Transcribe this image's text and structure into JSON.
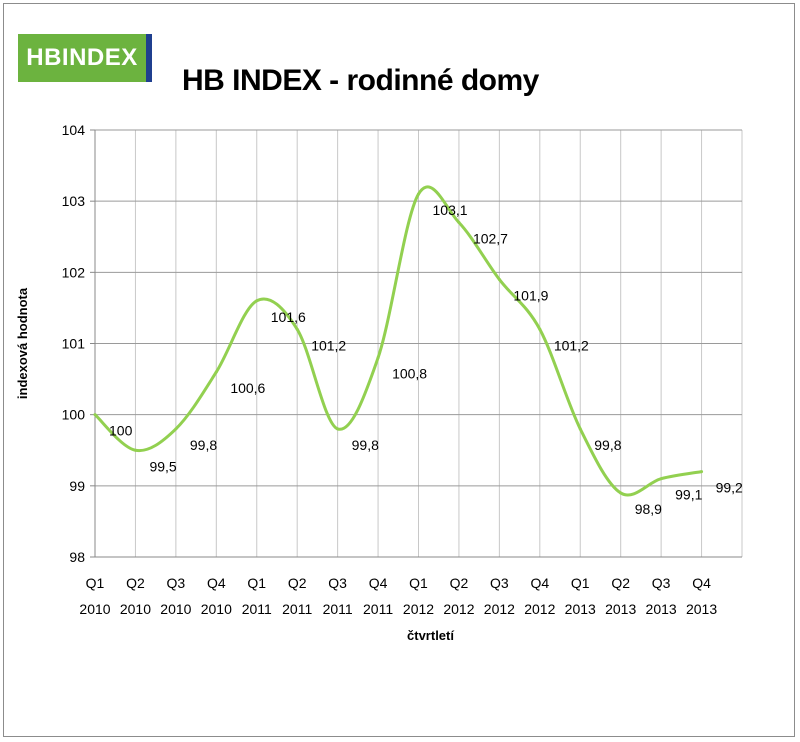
{
  "logo": {
    "text": "HBINDEX"
  },
  "chart_data": {
    "type": "line",
    "title": "HB INDEX - rodinné domy",
    "xlabel": "čtvrtletí",
    "ylabel": "indexová hodnota",
    "ylim": [
      98,
      104
    ],
    "yticks": [
      "98",
      "99",
      "100",
      "101",
      "102",
      "103",
      "104"
    ],
    "grid": true,
    "categories": [
      [
        "Q1",
        "2010"
      ],
      [
        "Q2",
        "2010"
      ],
      [
        "Q3",
        "2010"
      ],
      [
        "Q4",
        "2010"
      ],
      [
        "Q1",
        "2011"
      ],
      [
        "Q2",
        "2011"
      ],
      [
        "Q3",
        "2011"
      ],
      [
        "Q4",
        "2011"
      ],
      [
        "Q1",
        "2012"
      ],
      [
        "Q2",
        "2012"
      ],
      [
        "Q3",
        "2012"
      ],
      [
        "Q4",
        "2012"
      ],
      [
        "Q1",
        "2013"
      ],
      [
        "Q2",
        "2013"
      ],
      [
        "Q3",
        "2013"
      ],
      [
        "Q4",
        "2013"
      ]
    ],
    "values": [
      100,
      99.5,
      99.8,
      100.6,
      101.6,
      101.2,
      99.8,
      100.8,
      103.1,
      102.7,
      101.9,
      101.2,
      99.8,
      98.9,
      99.1,
      99.2
    ],
    "data_labels": [
      "100",
      "99,5",
      "99,8",
      "100,6",
      "101,6",
      "101,2",
      "99,8",
      "100,8",
      "103,1",
      "102,7",
      "101,9",
      "101,2",
      "99,8",
      "98,9",
      "99,1",
      "99,2"
    ],
    "line_color": "#92d050"
  }
}
